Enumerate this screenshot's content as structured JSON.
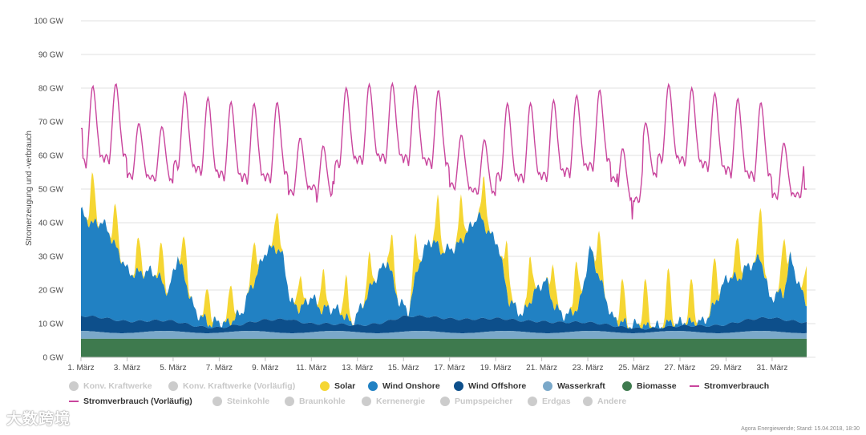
{
  "chart_data": {
    "type": "area",
    "ylabel": "Stromerzeugung und -verbrauch",
    "ylim": [
      0,
      100
    ],
    "yticks": [
      "0 GW",
      "10 GW",
      "20 GW",
      "30 GW",
      "40 GW",
      "50 GW",
      "60 GW",
      "70 GW",
      "80 GW",
      "90 GW",
      "100 GW"
    ],
    "xlim_days": [
      1,
      32.5
    ],
    "xticks": [
      {
        "day": 1,
        "label": "1. März"
      },
      {
        "day": 3,
        "label": "3. März"
      },
      {
        "day": 5,
        "label": "5. März"
      },
      {
        "day": 7,
        "label": "7. März"
      },
      {
        "day": 9,
        "label": "9. März"
      },
      {
        "day": 11,
        "label": "11. März"
      },
      {
        "day": 13,
        "label": "13. März"
      },
      {
        "day": 15,
        "label": "15. März"
      },
      {
        "day": 17,
        "label": "17. März"
      },
      {
        "day": 19,
        "label": "19. März"
      },
      {
        "day": 21,
        "label": "21. März"
      },
      {
        "day": 23,
        "label": "23. März"
      },
      {
        "day": 25,
        "label": "25. März"
      },
      {
        "day": 27,
        "label": "27. März"
      },
      {
        "day": 29,
        "label": "29. März"
      },
      {
        "day": 31,
        "label": "31. März"
      }
    ],
    "biomasse_gw": 5.5,
    "wasserkraft_gw": 2,
    "wind_offshore_keyframes": [
      [
        1,
        4.5
      ],
      [
        2,
        4.3
      ],
      [
        3,
        3.5
      ],
      [
        4,
        3.2
      ],
      [
        5,
        3
      ],
      [
        6,
        2
      ],
      [
        7,
        1.5
      ],
      [
        8,
        2
      ],
      [
        9,
        3.5
      ],
      [
        10,
        4.2
      ],
      [
        11,
        2.5
      ],
      [
        12,
        2
      ],
      [
        13,
        2
      ],
      [
        14,
        3
      ],
      [
        15,
        4.5
      ],
      [
        16,
        4.3
      ],
      [
        17,
        4.2
      ],
      [
        18,
        4.1
      ],
      [
        19,
        3.8
      ],
      [
        20,
        3.2
      ],
      [
        21,
        3.5
      ],
      [
        22,
        3
      ],
      [
        23,
        2.5
      ],
      [
        24,
        2
      ],
      [
        25,
        1.5
      ],
      [
        26,
        1
      ],
      [
        27,
        1.5
      ],
      [
        28,
        2
      ],
      [
        29,
        2.5
      ],
      [
        30,
        3.5
      ],
      [
        31,
        4
      ],
      [
        32,
        3.5
      ],
      [
        32.5,
        3.2
      ]
    ],
    "wind_onshore_keyframes": [
      [
        1,
        31
      ],
      [
        1.5,
        27
      ],
      [
        1.9,
        29
      ],
      [
        2.5,
        22
      ],
      [
        3,
        15
      ],
      [
        3.5,
        14
      ],
      [
        4,
        15
      ],
      [
        4.5,
        12
      ],
      [
        4.8,
        8
      ],
      [
        5.2,
        20
      ],
      [
        5.7,
        9
      ],
      [
        6,
        4
      ],
      [
        6.5,
        1.5
      ],
      [
        7,
        1.5
      ],
      [
        7.5,
        1
      ],
      [
        8,
        4
      ],
      [
        8.5,
        12
      ],
      [
        9,
        20
      ],
      [
        9.4,
        22
      ],
      [
        9.8,
        18
      ],
      [
        10.1,
        5
      ],
      [
        10.5,
        4
      ],
      [
        11,
        8
      ],
      [
        11.5,
        4
      ],
      [
        12,
        5
      ],
      [
        12.5,
        2
      ],
      [
        12.8,
        0.5
      ],
      [
        13.5,
        10
      ],
      [
        14,
        16
      ],
      [
        14.3,
        18
      ],
      [
        14.8,
        5
      ],
      [
        15.2,
        1
      ],
      [
        15.6,
        14
      ],
      [
        16.1,
        23
      ],
      [
        16.7,
        20
      ],
      [
        17.2,
        21
      ],
      [
        17.8,
        26
      ],
      [
        18.2,
        31
      ],
      [
        18.7,
        26
      ],
      [
        19.1,
        22
      ],
      [
        19.6,
        5
      ],
      [
        20.2,
        2
      ],
      [
        20.8,
        10
      ],
      [
        21.2,
        12
      ],
      [
        21.6,
        4
      ],
      [
        22,
        2
      ],
      [
        22.6,
        4
      ],
      [
        23.1,
        22
      ],
      [
        23.5,
        14
      ],
      [
        24,
        3
      ],
      [
        24.5,
        1
      ],
      [
        25,
        1
      ],
      [
        26,
        0.5
      ],
      [
        27,
        1
      ],
      [
        28,
        1
      ],
      [
        28.5,
        6
      ],
      [
        29,
        14
      ],
      [
        29.5,
        13
      ],
      [
        30,
        16
      ],
      [
        30.5,
        18
      ],
      [
        30.9,
        6
      ],
      [
        31.5,
        8
      ],
      [
        31.8,
        19
      ],
      [
        32.1,
        12
      ],
      [
        32.5,
        6
      ]
    ],
    "solar_peak_days": [
      [
        1.5,
        15
      ],
      [
        2.5,
        12
      ],
      [
        3.5,
        10
      ],
      [
        4.5,
        11
      ],
      [
        5.5,
        12
      ],
      [
        6.5,
        11
      ],
      [
        7.5,
        12
      ],
      [
        8.5,
        13
      ],
      [
        9.5,
        12
      ],
      [
        10.5,
        10
      ],
      [
        11.5,
        12
      ],
      [
        12.5,
        12
      ],
      [
        13.5,
        10
      ],
      [
        14.5,
        11
      ],
      [
        15.5,
        12
      ],
      [
        16.5,
        14
      ],
      [
        17.5,
        13
      ],
      [
        18.5,
        14
      ],
      [
        19.5,
        15
      ],
      [
        20.5,
        14
      ],
      [
        21.5,
        12
      ],
      [
        22.5,
        15
      ],
      [
        23.5,
        14
      ],
      [
        24.5,
        13
      ],
      [
        25.5,
        14
      ],
      [
        26.5,
        16
      ],
      [
        27.5,
        13
      ],
      [
        28.5,
        14
      ],
      [
        29.5,
        13
      ],
      [
        30.5,
        16
      ],
      [
        31.5,
        17
      ],
      [
        32.5,
        12
      ]
    ],
    "stromverbrauch_weekly_pattern": {
      "weekday_peak_gw": 76,
      "weekday_trough_gw": 55,
      "weekend_peak_gw": 65,
      "weekend_trough_gw": 50,
      "first_day_start_gw": 68,
      "min_gw": 41,
      "end_gw": 50
    },
    "legend": {
      "row1": [
        {
          "label": "Konv. Kraftwerke",
          "color": "#cccccc",
          "active": false
        },
        {
          "label": "Konv. Kraftwerke (Vorläufig)",
          "color": "#cccccc",
          "active": false
        },
        {
          "label": "Solar",
          "color": "#f5d633",
          "active": true
        },
        {
          "label": "Wind Onshore",
          "color": "#2181c3",
          "active": true
        },
        {
          "label": "Wind Offshore",
          "color": "#0d4f8b",
          "active": true
        },
        {
          "label": "Wasserkraft",
          "color": "#7aa8c9",
          "active": true
        },
        {
          "label": "Biomasse",
          "color": "#3e7a4e",
          "active": true
        },
        {
          "label": "Stromverbrauch",
          "color": "#c9459d",
          "active": true
        }
      ],
      "row2": [
        {
          "label": "Stromverbrauch (Vorläufig)",
          "color": "#c9459d",
          "active": true
        },
        {
          "label": "Steinkohle",
          "color": "#cccccc",
          "active": false
        },
        {
          "label": "Braunkohle",
          "color": "#cccccc",
          "active": false
        },
        {
          "label": "Kernenergie",
          "color": "#cccccc",
          "active": false
        },
        {
          "label": "Pumpspeicher",
          "color": "#cccccc",
          "active": false
        },
        {
          "label": "Erdgas",
          "color": "#cccccc",
          "active": false
        },
        {
          "label": "Andere",
          "color": "#cccccc",
          "active": false
        }
      ]
    }
  },
  "credit": "Agora Energiewende; Stand: 15.04.2018, 18:30",
  "watermark": "大数跨境"
}
